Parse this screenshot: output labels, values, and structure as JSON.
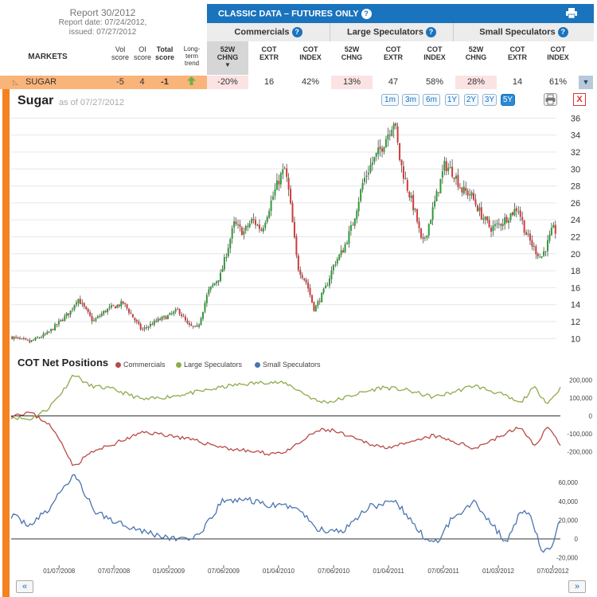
{
  "report": {
    "title": "Report 30/2012",
    "report_date": "Report date: 07/24/2012,",
    "issued": "issued: 07/27/2012"
  },
  "classic": {
    "title": "CLASSIC DATA – FUTURES ONLY",
    "help": "?"
  },
  "groups": [
    {
      "label": "Commercials",
      "help": "?"
    },
    {
      "label": "Large Speculators",
      "help": "?"
    },
    {
      "label": "Small Speculators",
      "help": "?"
    }
  ],
  "header": {
    "markets": "MARKETS",
    "vol_score": [
      "Vol",
      "score"
    ],
    "oi_score": [
      "OI",
      "score"
    ],
    "total_score": [
      "Total",
      "score"
    ],
    "trend": [
      "Long-",
      "term",
      "trend"
    ],
    "col_52w": [
      "52W",
      "CHNG"
    ],
    "col_extr": [
      "COT",
      "EXTR"
    ],
    "col_index": [
      "COT",
      "INDEX"
    ],
    "sort_arrow": "▼"
  },
  "row": {
    "market": "SUGAR",
    "vol": "-5",
    "oi": "4",
    "total": "-1",
    "trend_icon": "up-arrow-icon",
    "comm": {
      "chng": "-20%",
      "extr": "16",
      "index": "42%"
    },
    "large": {
      "chng": "13%",
      "extr": "47",
      "index": "58%"
    },
    "small": {
      "chng": "28%",
      "extr": "14",
      "index": "61%"
    },
    "expand": "▼"
  },
  "chart_header": {
    "title": "Sugar",
    "asof": "as of 07/27/2012",
    "ranges": [
      "1m",
      "3m",
      "6m",
      "1Y",
      "2Y",
      "3Y",
      "5Y"
    ],
    "active_range": "5Y",
    "close": "X"
  },
  "cot": {
    "title": "COT Net Positions",
    "legend": [
      {
        "name": "Commercials",
        "color": "#b94a48"
      },
      {
        "name": "Large Speculators",
        "color": "#8faa4b"
      },
      {
        "name": "Small Speculators",
        "color": "#4a74b0"
      }
    ]
  },
  "nav": {
    "prev": "«",
    "next": "»"
  },
  "chart_data": [
    {
      "type": "candlestick",
      "title": "Sugar",
      "y_ticks": [
        10,
        12,
        14,
        16,
        18,
        20,
        22,
        24,
        26,
        28,
        30,
        32,
        34,
        36
      ],
      "ylim": [
        9,
        36.5
      ],
      "x_range": [
        "2007-08-01",
        "2012-07-27"
      ],
      "colors": {
        "up": "#2e9a36",
        "down": "#d13a3a"
      },
      "close_path": [
        [
          "2007-08-01",
          10.2
        ],
        [
          "2007-10-01",
          9.6
        ],
        [
          "2007-12-01",
          10.6
        ],
        [
          "2008-02-15",
          13.2
        ],
        [
          "2008-03-10",
          14.8
        ],
        [
          "2008-05-01",
          12.0
        ],
        [
          "2008-06-15",
          13.4
        ],
        [
          "2008-08-10",
          14.2
        ],
        [
          "2008-10-10",
          11.0
        ],
        [
          "2008-12-01",
          12.1
        ],
        [
          "2009-01-15",
          12.8
        ],
        [
          "2009-02-10",
          13.4
        ],
        [
          "2009-03-15",
          11.5
        ],
        [
          "2009-04-15",
          11.2
        ],
        [
          "2009-05-20",
          15.5
        ],
        [
          "2009-07-01",
          17.5
        ],
        [
          "2009-08-15",
          23.5
        ],
        [
          "2009-09-15",
          22.5
        ],
        [
          "2009-10-15",
          24.0
        ],
        [
          "2009-11-15",
          22.8
        ],
        [
          "2009-12-20",
          26.5
        ],
        [
          "2010-01-15",
          29.0
        ],
        [
          "2010-02-01",
          30.0
        ],
        [
          "2010-02-15",
          27.0
        ],
        [
          "2010-03-15",
          18.5
        ],
        [
          "2010-04-15",
          16.5
        ],
        [
          "2010-05-10",
          13.4
        ],
        [
          "2010-06-20",
          16.2
        ],
        [
          "2010-07-15",
          18.8
        ],
        [
          "2010-08-15",
          20.5
        ],
        [
          "2010-09-15",
          23.5
        ],
        [
          "2010-10-20",
          28.5
        ],
        [
          "2010-11-15",
          30.5
        ],
        [
          "2010-12-20",
          32.5
        ],
        [
          "2011-01-15",
          34.5
        ],
        [
          "2011-02-01",
          35.8
        ],
        [
          "2011-02-20",
          31.0
        ],
        [
          "2011-03-15",
          28.0
        ],
        [
          "2011-04-15",
          24.5
        ],
        [
          "2011-05-05",
          21.0
        ],
        [
          "2011-05-20",
          22.5
        ],
        [
          "2011-06-20",
          26.5
        ],
        [
          "2011-07-20",
          30.5
        ],
        [
          "2011-08-20",
          29.5
        ],
        [
          "2011-09-15",
          27.5
        ],
        [
          "2011-10-15",
          27.0
        ],
        [
          "2011-11-20",
          24.5
        ],
        [
          "2011-12-20",
          23.0
        ],
        [
          "2012-01-20",
          23.5
        ],
        [
          "2012-02-20",
          24.5
        ],
        [
          "2012-03-20",
          25.5
        ],
        [
          "2012-04-15",
          22.5
        ],
        [
          "2012-05-10",
          20.8
        ],
        [
          "2012-06-05",
          19.5
        ],
        [
          "2012-06-25",
          21.0
        ],
        [
          "2012-07-15",
          23.0
        ],
        [
          "2012-07-27",
          22.5
        ]
      ]
    },
    {
      "type": "line",
      "title": "COT Net Positions",
      "y_ticks": [
        -200000,
        -100000,
        0,
        100000,
        200000
      ],
      "series": [
        {
          "name": "Large Speculators",
          "color": "#8faa4b",
          "points": [
            [
              "2007-08-01",
              -5000
            ],
            [
              "2007-10-01",
              -20000
            ],
            [
              "2007-12-01",
              40000
            ],
            [
              "2008-01-20",
              140000
            ],
            [
              "2008-02-25",
              235000
            ],
            [
              "2008-04-15",
              170000
            ],
            [
              "2008-07-01",
              150000
            ],
            [
              "2008-10-15",
              90000
            ],
            [
              "2009-01-15",
              110000
            ],
            [
              "2009-05-01",
              140000
            ],
            [
              "2009-08-01",
              170000
            ],
            [
              "2009-12-01",
              190000
            ],
            [
              "2010-02-01",
              180000
            ],
            [
              "2010-05-15",
              80000
            ],
            [
              "2010-07-01",
              80000
            ],
            [
              "2010-09-15",
              120000
            ],
            [
              "2010-12-15",
              160000
            ],
            [
              "2011-03-01",
              145000
            ],
            [
              "2011-06-01",
              105000
            ],
            [
              "2011-08-01",
              130000
            ],
            [
              "2011-10-15",
              170000
            ],
            [
              "2012-01-15",
              120000
            ],
            [
              "2012-03-15",
              70000
            ],
            [
              "2012-05-01",
              160000
            ],
            [
              "2012-06-15",
              70000
            ],
            [
              "2012-07-27",
              155000
            ]
          ]
        },
        {
          "name": "Commercials",
          "color": "#b94a48",
          "points": [
            [
              "2007-08-01",
              5000
            ],
            [
              "2007-10-01",
              20000
            ],
            [
              "2007-12-01",
              -40000
            ],
            [
              "2008-01-20",
              -160000
            ],
            [
              "2008-02-25",
              -285000
            ],
            [
              "2008-04-15",
              -210000
            ],
            [
              "2008-07-01",
              -160000
            ],
            [
              "2008-10-15",
              -90000
            ],
            [
              "2009-01-15",
              -110000
            ],
            [
              "2009-05-01",
              -150000
            ],
            [
              "2009-08-01",
              -185000
            ],
            [
              "2009-12-01",
              -210000
            ],
            [
              "2010-02-01",
              -200000
            ],
            [
              "2010-05-15",
              -80000
            ],
            [
              "2010-07-01",
              -80000
            ],
            [
              "2010-09-15",
              -130000
            ],
            [
              "2010-12-15",
              -175000
            ],
            [
              "2011-03-01",
              -160000
            ],
            [
              "2011-06-01",
              -110000
            ],
            [
              "2011-08-01",
              -140000
            ],
            [
              "2011-10-15",
              -180000
            ],
            [
              "2012-01-15",
              -110000
            ],
            [
              "2012-03-15",
              -60000
            ],
            [
              "2012-05-01",
              -170000
            ],
            [
              "2012-06-15",
              -60000
            ],
            [
              "2012-07-27",
              -160000
            ]
          ]
        },
        {
          "name": "Small Speculators",
          "color": "#4a74b0",
          "y_ticks": [
            -20000,
            0,
            20000,
            40000,
            60000
          ],
          "points": [
            [
              "2007-08-01",
              25000
            ],
            [
              "2007-10-01",
              15000
            ],
            [
              "2007-12-01",
              30000
            ],
            [
              "2008-01-20",
              55000
            ],
            [
              "2008-03-01",
              68000
            ],
            [
              "2008-05-01",
              30000
            ],
            [
              "2008-07-01",
              20000
            ],
            [
              "2008-10-15",
              8000
            ],
            [
              "2009-01-15",
              0
            ],
            [
              "2009-04-15",
              2000
            ],
            [
              "2009-07-01",
              40000
            ],
            [
              "2009-09-15",
              42000
            ],
            [
              "2009-12-15",
              35000
            ],
            [
              "2010-03-01",
              35000
            ],
            [
              "2010-05-15",
              10000
            ],
            [
              "2010-08-01",
              8000
            ],
            [
              "2010-11-01",
              35000
            ],
            [
              "2011-02-01",
              38000
            ],
            [
              "2011-05-01",
              2000
            ],
            [
              "2011-06-15",
              -5000
            ],
            [
              "2011-08-01",
              22000
            ],
            [
              "2011-10-15",
              40000
            ],
            [
              "2011-12-15",
              15000
            ],
            [
              "2012-02-01",
              -5000
            ],
            [
              "2012-03-15",
              30000
            ],
            [
              "2012-04-15",
              25000
            ],
            [
              "2012-06-01",
              -15000
            ],
            [
              "2012-06-25",
              -10000
            ],
            [
              "2012-07-27",
              20000
            ]
          ]
        }
      ]
    }
  ],
  "x_tick_labels": [
    "01/07/2008",
    "07/07/2008",
    "01/05/2009",
    "07/06/2009",
    "01/04/2010",
    "07/06/2010",
    "01/04/2011",
    "07/05/2011",
    "01/03/2012",
    "07/02/2012"
  ]
}
